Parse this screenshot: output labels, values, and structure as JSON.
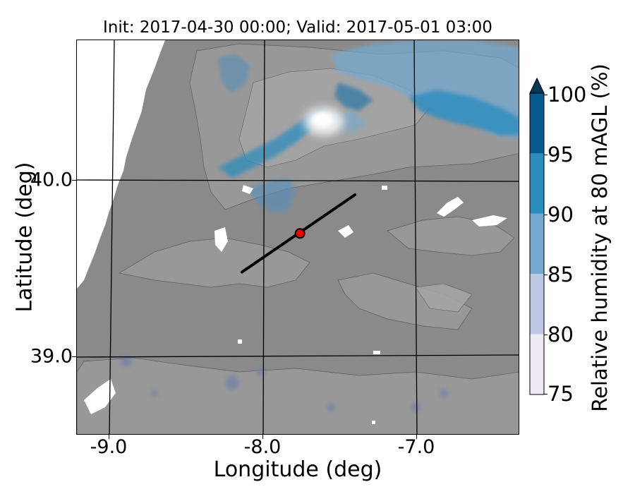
{
  "title": "Init: 2017-04-30 00:00; Valid: 2017-05-01 03:00",
  "x_axis": {
    "label": "Longitude (deg)",
    "ticks": [
      "-9.0",
      "-8.0",
      "-7.0"
    ],
    "tick_values": [
      -9.0,
      -8.0,
      -7.0
    ],
    "range": [
      -9.2,
      -6.3
    ]
  },
  "y_axis": {
    "label": "Latitude (deg)",
    "ticks": [
      "40.0",
      "39.0"
    ],
    "tick_values": [
      40.0,
      39.0
    ],
    "range": [
      38.55,
      40.8
    ]
  },
  "colorbar": {
    "label": "Relative humidity at 80 mAGL (%)",
    "ticks": [
      "100",
      "95",
      "90",
      "85",
      "80",
      "75"
    ],
    "levels": [
      75,
      80,
      85,
      90,
      95,
      100
    ],
    "colors": [
      "#efe9f4",
      "#bdc9e2",
      "#74a9cf",
      "#2b8cbe",
      "#045a8d",
      "#023858"
    ],
    "extend": "max"
  },
  "map": {
    "terrain_color": "#8a8a8a",
    "ocean_color": "#ffffff",
    "gridlines": true
  },
  "cross_section": {
    "start": [
      -8.12,
      39.48
    ],
    "end": [
      -7.38,
      39.92
    ],
    "color": "#000000"
  },
  "marker": {
    "lon": -7.74,
    "lat": 39.7,
    "color": "#ee0000"
  }
}
